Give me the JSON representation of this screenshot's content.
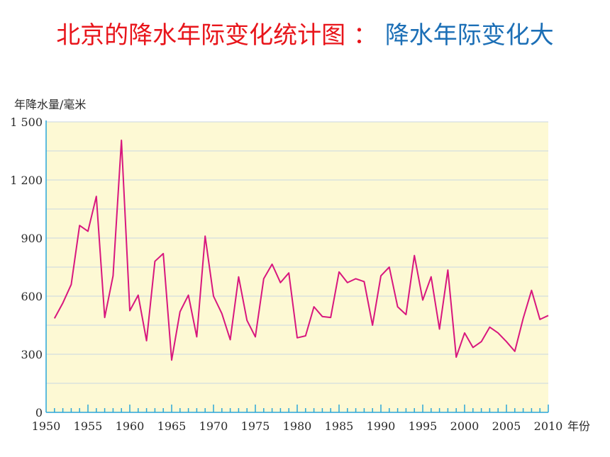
{
  "title": {
    "main": "北京的降水年际变化统计图",
    "separator": "：",
    "sub": "降水年际变化大"
  },
  "colors": {
    "title_main": "#e8151b",
    "title_sub": "#1c6fb6",
    "plot_background": "#fdf9d4",
    "gridline": "#c9d6e2",
    "axis": "#2aa6d8",
    "series": "#d8177e"
  },
  "chart_data": {
    "type": "line",
    "ylabel": "年降水量/毫米",
    "xlabel": "年份",
    "xlim": [
      1950,
      2010
    ],
    "ylim": [
      0,
      1500
    ],
    "x_ticks": [
      "1950",
      "1955",
      "1960",
      "1965",
      "1970",
      "1975",
      "1980",
      "1985",
      "1990",
      "1995",
      "2000",
      "2005",
      "2010"
    ],
    "y_ticks": [
      "0",
      "300",
      "600",
      "900",
      "1 200",
      "1 500"
    ],
    "grid": true,
    "x": [
      1951,
      1952,
      1953,
      1954,
      1955,
      1956,
      1957,
      1958,
      1959,
      1960,
      1961,
      1962,
      1963,
      1964,
      1965,
      1966,
      1967,
      1968,
      1969,
      1970,
      1971,
      1972,
      1973,
      1974,
      1975,
      1976,
      1977,
      1978,
      1979,
      1980,
      1981,
      1982,
      1983,
      1984,
      1985,
      1986,
      1987,
      1988,
      1989,
      1990,
      1991,
      1992,
      1993,
      1994,
      1995,
      1996,
      1997,
      1998,
      1999,
      2000,
      2001,
      2002,
      2003,
      2004,
      2005,
      2006,
      2007,
      2008,
      2009,
      2010
    ],
    "series": [
      {
        "values": [
          485,
          565,
          660,
          965,
          935,
          1115,
          490,
          705,
          1405,
          525,
          605,
          370,
          780,
          820,
          270,
          520,
          605,
          390,
          910,
          600,
          510,
          375,
          700,
          475,
          390,
          690,
          765,
          670,
          720,
          385,
          395,
          545,
          495,
          490,
          725,
          670,
          690,
          675,
          450,
          705,
          750,
          545,
          505,
          810,
          580,
          700,
          430,
          735,
          285,
          410,
          335,
          365,
          440,
          410,
          365,
          315,
          485,
          630,
          480,
          500
        ]
      }
    ]
  }
}
